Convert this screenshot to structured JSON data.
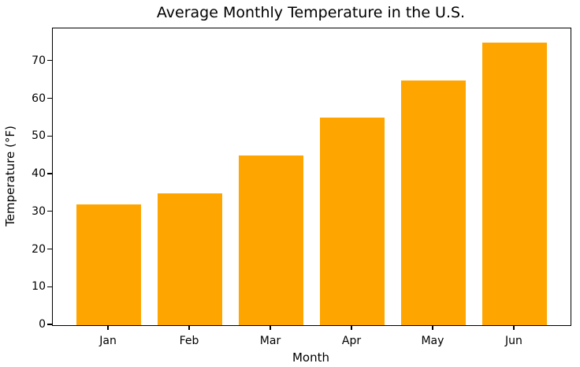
{
  "chart_data": {
    "type": "bar",
    "title": "Average Monthly Temperature in the U.S.",
    "xlabel": "Month",
    "ylabel": "Temperature (°F)",
    "categories": [
      "Jan",
      "Feb",
      "Mar",
      "Apr",
      "May",
      "Jun"
    ],
    "values": [
      32,
      35,
      45,
      55,
      65,
      75
    ],
    "yticks": [
      0,
      10,
      20,
      30,
      40,
      50,
      60,
      70
    ],
    "ylim": [
      0,
      78.75
    ],
    "xlim": [
      -0.69,
      5.69
    ],
    "bar_width": 0.8,
    "bar_color": "#FFA500",
    "text_color": "#000000",
    "spine_color": "#000000",
    "background_color": "#ffffff",
    "grid": false,
    "legend": null
  }
}
